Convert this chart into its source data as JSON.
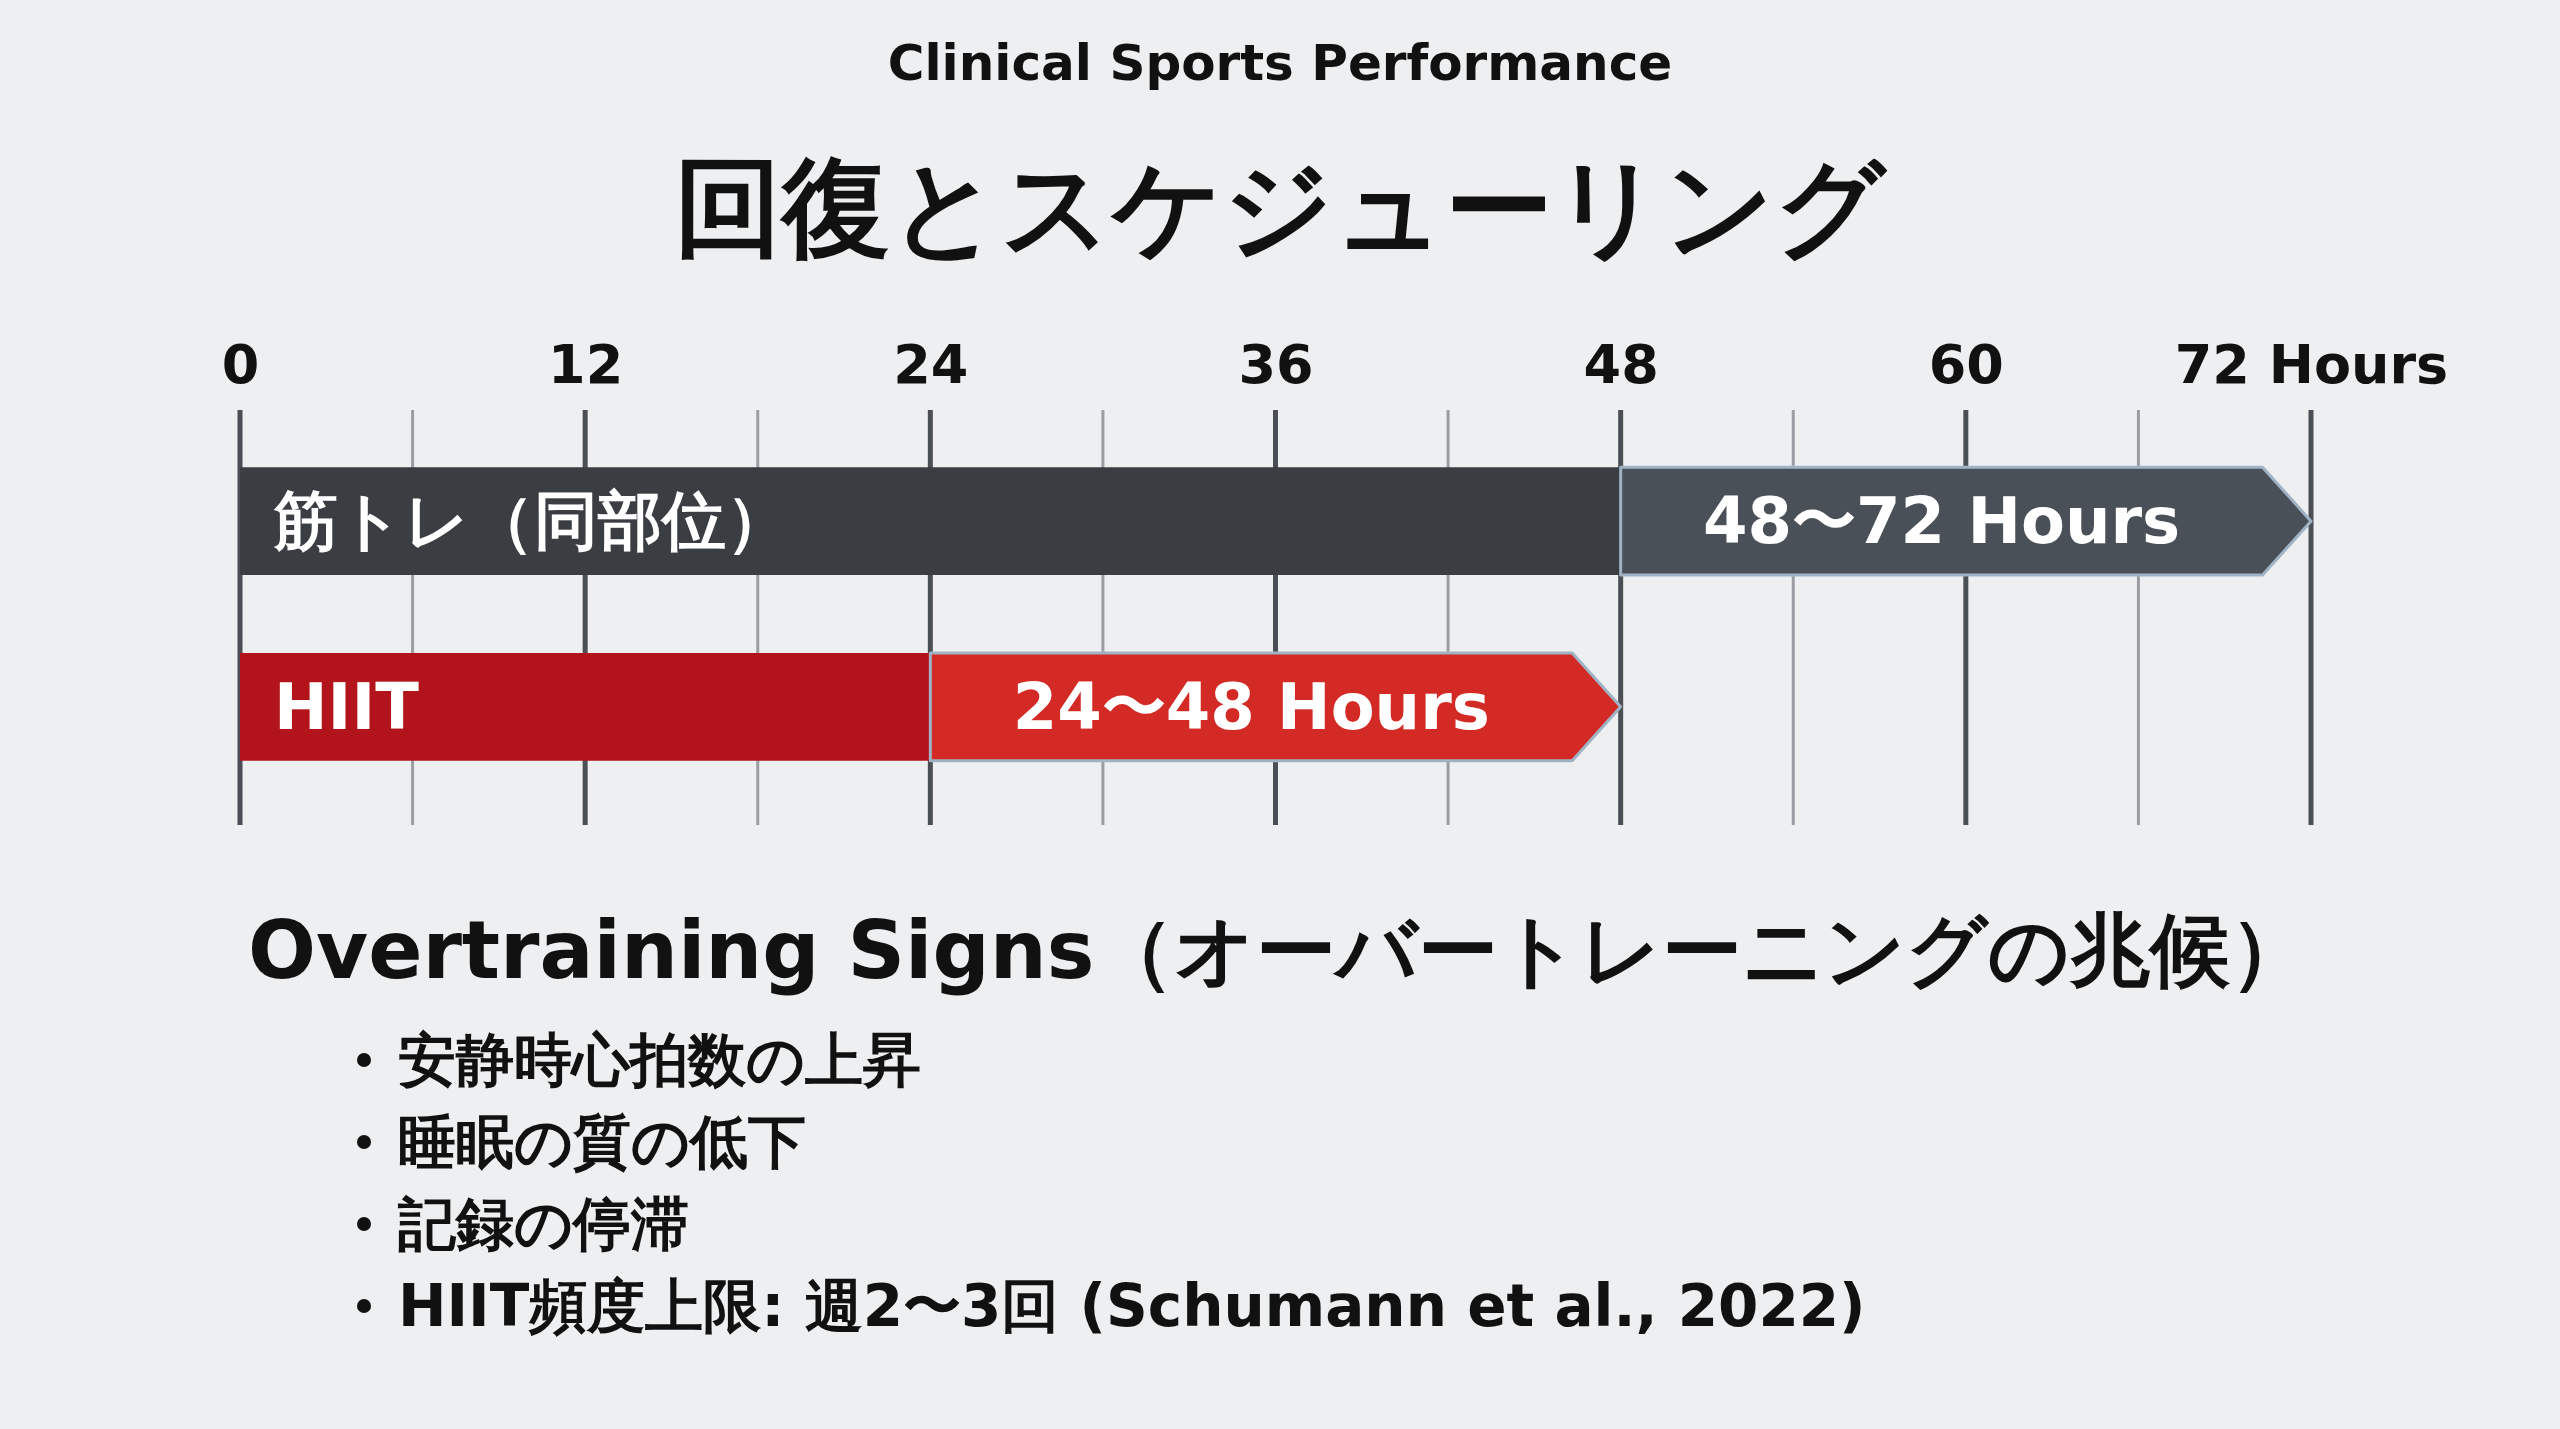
{
  "chart_data": {
    "type": "bar",
    "orientation": "horizontal",
    "stacked": true,
    "subtitle": "Clinical Sports Performance",
    "title": "回復とスケジューリング",
    "categories": [
      "筋トレ（同部位）",
      "HIIT"
    ],
    "series": [
      {
        "colors": [
          "#3a3d42",
          "#b3141c"
        ],
        "values": [
          48,
          24
        ]
      },
      {
        "colors": [
          "#4a5058",
          "#d42a26"
        ],
        "values": [
          24,
          24
        ]
      }
    ],
    "xlim": [
      0,
      72
    ],
    "xticks": [
      0,
      {
        "value": 6,
        "label": null
      },
      12,
      {
        "value": 18,
        "label": null
      },
      24,
      {
        "value": 30,
        "label": null
      },
      36,
      {
        "value": 42,
        "label": null
      },
      48,
      {
        "value": 54,
        "label": null
      },
      60,
      {
        "value": 66,
        "label": null
      },
      {
        "value": 72,
        "label": "72 Hours"
      }
    ],
    "grid": "x",
    "annotations": [
      "48〜72 Hours",
      "24〜48 Hours",
      "Overtraining Signs（オーバートレーニングの兆候）",
      "安静時心拍数の上昇",
      "睡眠の質の低下",
      "記録の停滞",
      "HIIT頻度上限: 週2〜3回 (Schumann et al., 2022)"
    ]
  }
}
